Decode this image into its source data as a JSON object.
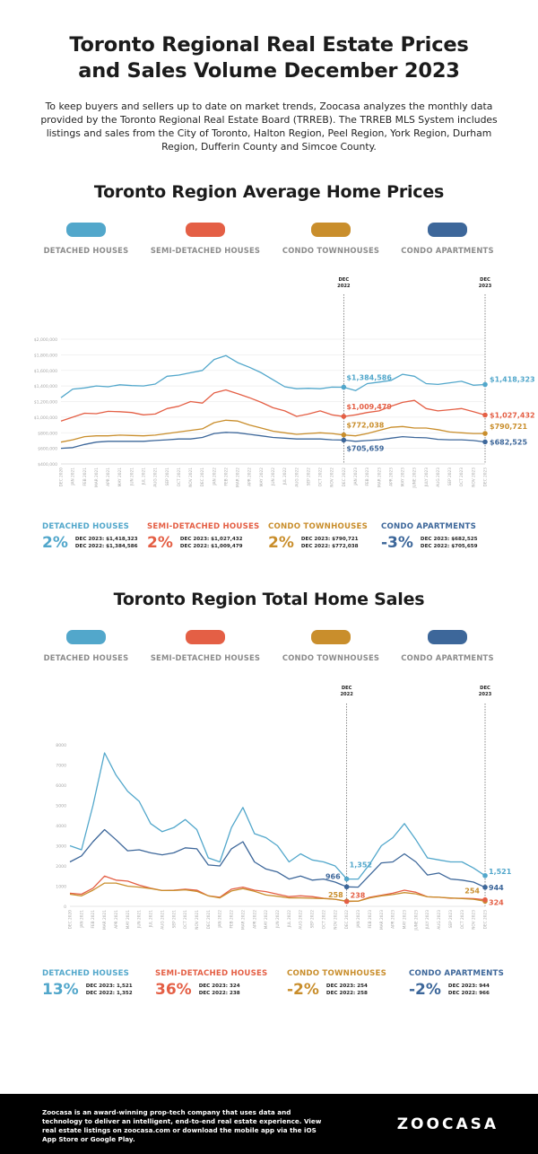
{
  "header": {
    "title_line1": "Toronto Regional Real Estate Prices",
    "title_line2": "and Sales Volume December 2023",
    "intro": "To keep buyers and sellers up to date on market trends, Zoocasa analyzes the monthly data provided by the Toronto Regional Real Estate Board (TRREB). The TRREB MLS System includes listings and sales from the City of Toronto, Halton Region, Peel Region, York Region, Durham Region, Dufferin County and Simcoe County."
  },
  "colors": {
    "detached": "#52a7cb",
    "semi": "#e45f45",
    "townhouse": "#c98e2c",
    "apartment": "#3d679a",
    "ref_line": "#555555",
    "axis_text": "#a8a8a8"
  },
  "legend": [
    {
      "key": "detached",
      "label": "DETACHED HOUSES"
    },
    {
      "key": "semi",
      "label": "SEMI-DETACHED HOUSES"
    },
    {
      "key": "townhouse",
      "label": "CONDO TOWNHOUSES"
    },
    {
      "key": "apartment",
      "label": "CONDO APARTMENTS"
    }
  ],
  "prices_section": {
    "title": "Toronto Region Average Home Prices",
    "summary": [
      {
        "key": "detached",
        "name": "DETACHED HOUSES",
        "pct": "2%",
        "line1": "DEC 2023: $1,418,323",
        "line2": "DEC 2022: $1,384,586"
      },
      {
        "key": "semi",
        "name": "SEMI-DETACHED HOUSES",
        "pct": "2%",
        "line1": "DEC 2023: $1,027,432",
        "line2": "DEC 2022: $1,009,479"
      },
      {
        "key": "townhouse",
        "name": "CONDO TOWNHOUSES",
        "pct": "2%",
        "line1": "DEC 2023: $790,721",
        "line2": "DEC 2022: $772,038"
      },
      {
        "key": "apartment",
        "name": "CONDO APARTMENTS",
        "pct": "-3%",
        "line1": "DEC 2023: $682,525",
        "line2": "DEC 2022: $705,659"
      }
    ]
  },
  "sales_section": {
    "title": "Toronto Region Total Home Sales",
    "summary": [
      {
        "key": "detached",
        "name": "DETACHED HOUSES",
        "pct": "13%",
        "line1": "DEC 2023: 1,521",
        "line2": "DEC 2022: 1,352"
      },
      {
        "key": "semi",
        "name": "SEMI-DETACHED HOUSES",
        "pct": "36%",
        "line1": "DEC 2023: 324",
        "line2": "DEC 2022: 238"
      },
      {
        "key": "townhouse",
        "name": "CONDO TOWNHOUSES",
        "pct": "-2%",
        "line1": "DEC 2023: 254",
        "line2": "DEC 2022: 258"
      },
      {
        "key": "apartment",
        "name": "CONDO APARTMENTS",
        "pct": "-2%",
        "line1": "DEC 2023: 944",
        "line2": "DEC 2022: 966"
      }
    ]
  },
  "footer": {
    "text": "Zoocasa is an award-winning prop-tech company that uses data and technology to deliver an intelligent, end-to-end real estate experience. View real estate listings on zoocasa.com or download the mobile app via the iOS App Store or Google Play.",
    "logo": "ZOOCASA"
  },
  "chart_data": [
    {
      "type": "line",
      "title": "Toronto Region Average Home Prices",
      "xlabel": "",
      "ylabel": "",
      "ylim": [
        400000,
        2000000
      ],
      "yticks": [
        400000,
        600000,
        800000,
        1000000,
        1200000,
        1400000,
        1600000,
        1800000,
        2000000
      ],
      "ytick_labels": [
        "$400,000",
        "$600,000",
        "$800,000",
        "$1,000,000",
        "$1,200,000",
        "$1,400,000",
        "$1,600,000",
        "$1,800,000",
        "$2,000,000"
      ],
      "grid": true,
      "x": [
        "DEC 2020",
        "JAN 2021",
        "FEB 2021",
        "MAR 2021",
        "APR 2021",
        "MAY 2021",
        "JUN 2021",
        "JUL 2021",
        "AUG 2021",
        "SEP 2021",
        "OCT 2021",
        "NOV 2021",
        "DEC 2021",
        "JAN 2022",
        "FEB 2022",
        "MAR 2022",
        "APR 2022",
        "MAY 2022",
        "JUN 2022",
        "JUL 2022",
        "AUG 2022",
        "SEP 2022",
        "OCT 2022",
        "NOV 2022",
        "DEC 2022",
        "JAN 2023",
        "FEB 2023",
        "MAR 2023",
        "APR 2023",
        "MAY 2023",
        "JUNE 2023",
        "JULY 2023",
        "AUG 2023",
        "SEP 2023",
        "OCT 2023",
        "NOV 2023",
        "DEC 2023"
      ],
      "reference_lines": [
        {
          "index": 24,
          "label_top": "DEC",
          "label_bottom": "2022"
        },
        {
          "index": 36,
          "label_top": "DEC",
          "label_bottom": "2023"
        }
      ],
      "series": [
        {
          "key": "detached",
          "values": [
            1250000,
            1360000,
            1375000,
            1400000,
            1390000,
            1415000,
            1405000,
            1400000,
            1425000,
            1525000,
            1540000,
            1570000,
            1600000,
            1740000,
            1790000,
            1700000,
            1640000,
            1570000,
            1480000,
            1390000,
            1365000,
            1370000,
            1365000,
            1385000,
            1384586,
            1340000,
            1430000,
            1450000,
            1470000,
            1550000,
            1525000,
            1430000,
            1420000,
            1440000,
            1460000,
            1410000,
            1418323
          ]
        },
        {
          "key": "semi",
          "values": [
            950000,
            1000000,
            1050000,
            1045000,
            1075000,
            1070000,
            1060000,
            1030000,
            1040000,
            1110000,
            1140000,
            1200000,
            1180000,
            1310000,
            1350000,
            1300000,
            1250000,
            1190000,
            1120000,
            1080000,
            1010000,
            1040000,
            1080000,
            1030000,
            1009479,
            1030000,
            1060000,
            1080000,
            1140000,
            1190000,
            1215000,
            1110000,
            1080000,
            1095000,
            1110000,
            1070000,
            1027432
          ]
        },
        {
          "key": "townhouse",
          "values": [
            680000,
            710000,
            750000,
            760000,
            760000,
            770000,
            765000,
            760000,
            770000,
            790000,
            810000,
            830000,
            850000,
            930000,
            960000,
            950000,
            900000,
            860000,
            820000,
            800000,
            780000,
            790000,
            800000,
            790000,
            772038,
            760000,
            790000,
            830000,
            870000,
            880000,
            860000,
            860000,
            840000,
            810000,
            800000,
            790000,
            790721
          ]
        },
        {
          "key": "apartment",
          "values": [
            600000,
            610000,
            650000,
            680000,
            690000,
            690000,
            690000,
            690000,
            700000,
            710000,
            720000,
            720000,
            740000,
            790000,
            805000,
            800000,
            780000,
            760000,
            740000,
            730000,
            720000,
            720000,
            720000,
            710000,
            705659,
            690000,
            700000,
            710000,
            730000,
            750000,
            740000,
            735000,
            715000,
            710000,
            710000,
            700000,
            682525
          ]
        }
      ],
      "annotations": [
        {
          "key": "detached",
          "index": 24,
          "text": "$1,384,586"
        },
        {
          "key": "detached",
          "index": 36,
          "text": "$1,418,323"
        },
        {
          "key": "semi",
          "index": 24,
          "text": "$1,009,479"
        },
        {
          "key": "semi",
          "index": 36,
          "text": "$1,027,432"
        },
        {
          "key": "townhouse",
          "index": 24,
          "text": "$772,038"
        },
        {
          "key": "townhouse",
          "index": 36,
          "text": "$790,721"
        },
        {
          "key": "apartment",
          "index": 24,
          "text": "$705,659"
        },
        {
          "key": "apartment",
          "index": 36,
          "text": "$682,525"
        }
      ]
    },
    {
      "type": "line",
      "title": "Toronto Region Total Home Sales",
      "xlabel": "",
      "ylabel": "",
      "ylim": [
        0,
        8000
      ],
      "yticks": [
        0,
        1000,
        2000,
        3000,
        4000,
        5000,
        6000,
        7000,
        8000
      ],
      "ytick_labels": [
        "0",
        "1000",
        "2000",
        "3000",
        "4000",
        "5000",
        "6000",
        "7000",
        "8000"
      ],
      "grid": false,
      "x": [
        "DEC 2020",
        "JAN 2021",
        "FEB 2021",
        "MAR 2021",
        "APR 2021",
        "MAY 2021",
        "JUN 2021",
        "JUL 2021",
        "AUG 2021",
        "SEP 2021",
        "OCT 2021",
        "NOV 2021",
        "DEC 2021",
        "JAN 2022",
        "FEB 2022",
        "MAR 2022",
        "APR 2022",
        "MAY 2022",
        "JUN 2022",
        "JUL 2022",
        "AUG 2022",
        "SEP 2022",
        "OCT 2022",
        "NOV 2022",
        "DEC 2022",
        "JAN 2023",
        "FEB 2023",
        "MAR 2023",
        "APR 2023",
        "MAY 2023",
        "JUNE 2023",
        "JULY 2023",
        "AUG 2023",
        "SEP 2023",
        "OCT 2023",
        "NOV 2023",
        "DEC 2023"
      ],
      "reference_lines": [
        {
          "index": 24,
          "label_top": "DEC",
          "label_bottom": "2022"
        },
        {
          "index": 36,
          "label_top": "DEC",
          "label_bottom": "2023"
        }
      ],
      "series": [
        {
          "key": "detached",
          "values": [
            3000,
            2800,
            5000,
            7600,
            6500,
            5700,
            5200,
            4100,
            3700,
            3900,
            4300,
            3800,
            2400,
            2200,
            3900,
            4900,
            3600,
            3400,
            3000,
            2200,
            2600,
            2300,
            2200,
            2000,
            1352,
            1350,
            2100,
            3000,
            3400,
            4100,
            3300,
            2400,
            2300,
            2200,
            2200,
            1900,
            1521
          ]
        },
        {
          "key": "semi",
          "values": [
            650,
            600,
            900,
            1500,
            1300,
            1250,
            1050,
            900,
            780,
            800,
            850,
            800,
            520,
            450,
            850,
            950,
            800,
            730,
            600,
            480,
            520,
            480,
            400,
            350,
            238,
            260,
            450,
            550,
            650,
            800,
            700,
            470,
            450,
            400,
            400,
            380,
            324
          ]
        },
        {
          "key": "townhouse",
          "values": [
            600,
            520,
            800,
            1150,
            1150,
            1000,
            950,
            880,
            780,
            780,
            820,
            740,
            520,
            420,
            760,
            880,
            740,
            560,
            500,
            420,
            420,
            400,
            380,
            350,
            258,
            260,
            420,
            520,
            580,
            680,
            620,
            470,
            450,
            420,
            380,
            350,
            254
          ]
        },
        {
          "key": "apartment",
          "values": [
            2200,
            2500,
            3200,
            3800,
            3300,
            2750,
            2800,
            2650,
            2550,
            2650,
            2900,
            2850,
            2050,
            2000,
            2850,
            3200,
            2200,
            1850,
            1700,
            1350,
            1500,
            1300,
            1350,
            1200,
            966,
            950,
            1550,
            2150,
            2200,
            2600,
            2200,
            1550,
            1650,
            1350,
            1300,
            1200,
            944
          ]
        }
      ],
      "annotations": [
        {
          "key": "detached",
          "index": 24,
          "text": "1,352"
        },
        {
          "key": "detached",
          "index": 36,
          "text": "1,521"
        },
        {
          "key": "apartment",
          "index": 24,
          "text": "966"
        },
        {
          "key": "apartment",
          "index": 36,
          "text": "944"
        },
        {
          "key": "townhouse",
          "index": 24,
          "text": "258"
        },
        {
          "key": "semi",
          "index": 24,
          "text": "238"
        },
        {
          "key": "townhouse",
          "index": 36,
          "text": "254"
        },
        {
          "key": "semi",
          "index": 36,
          "text": "324"
        }
      ]
    }
  ]
}
